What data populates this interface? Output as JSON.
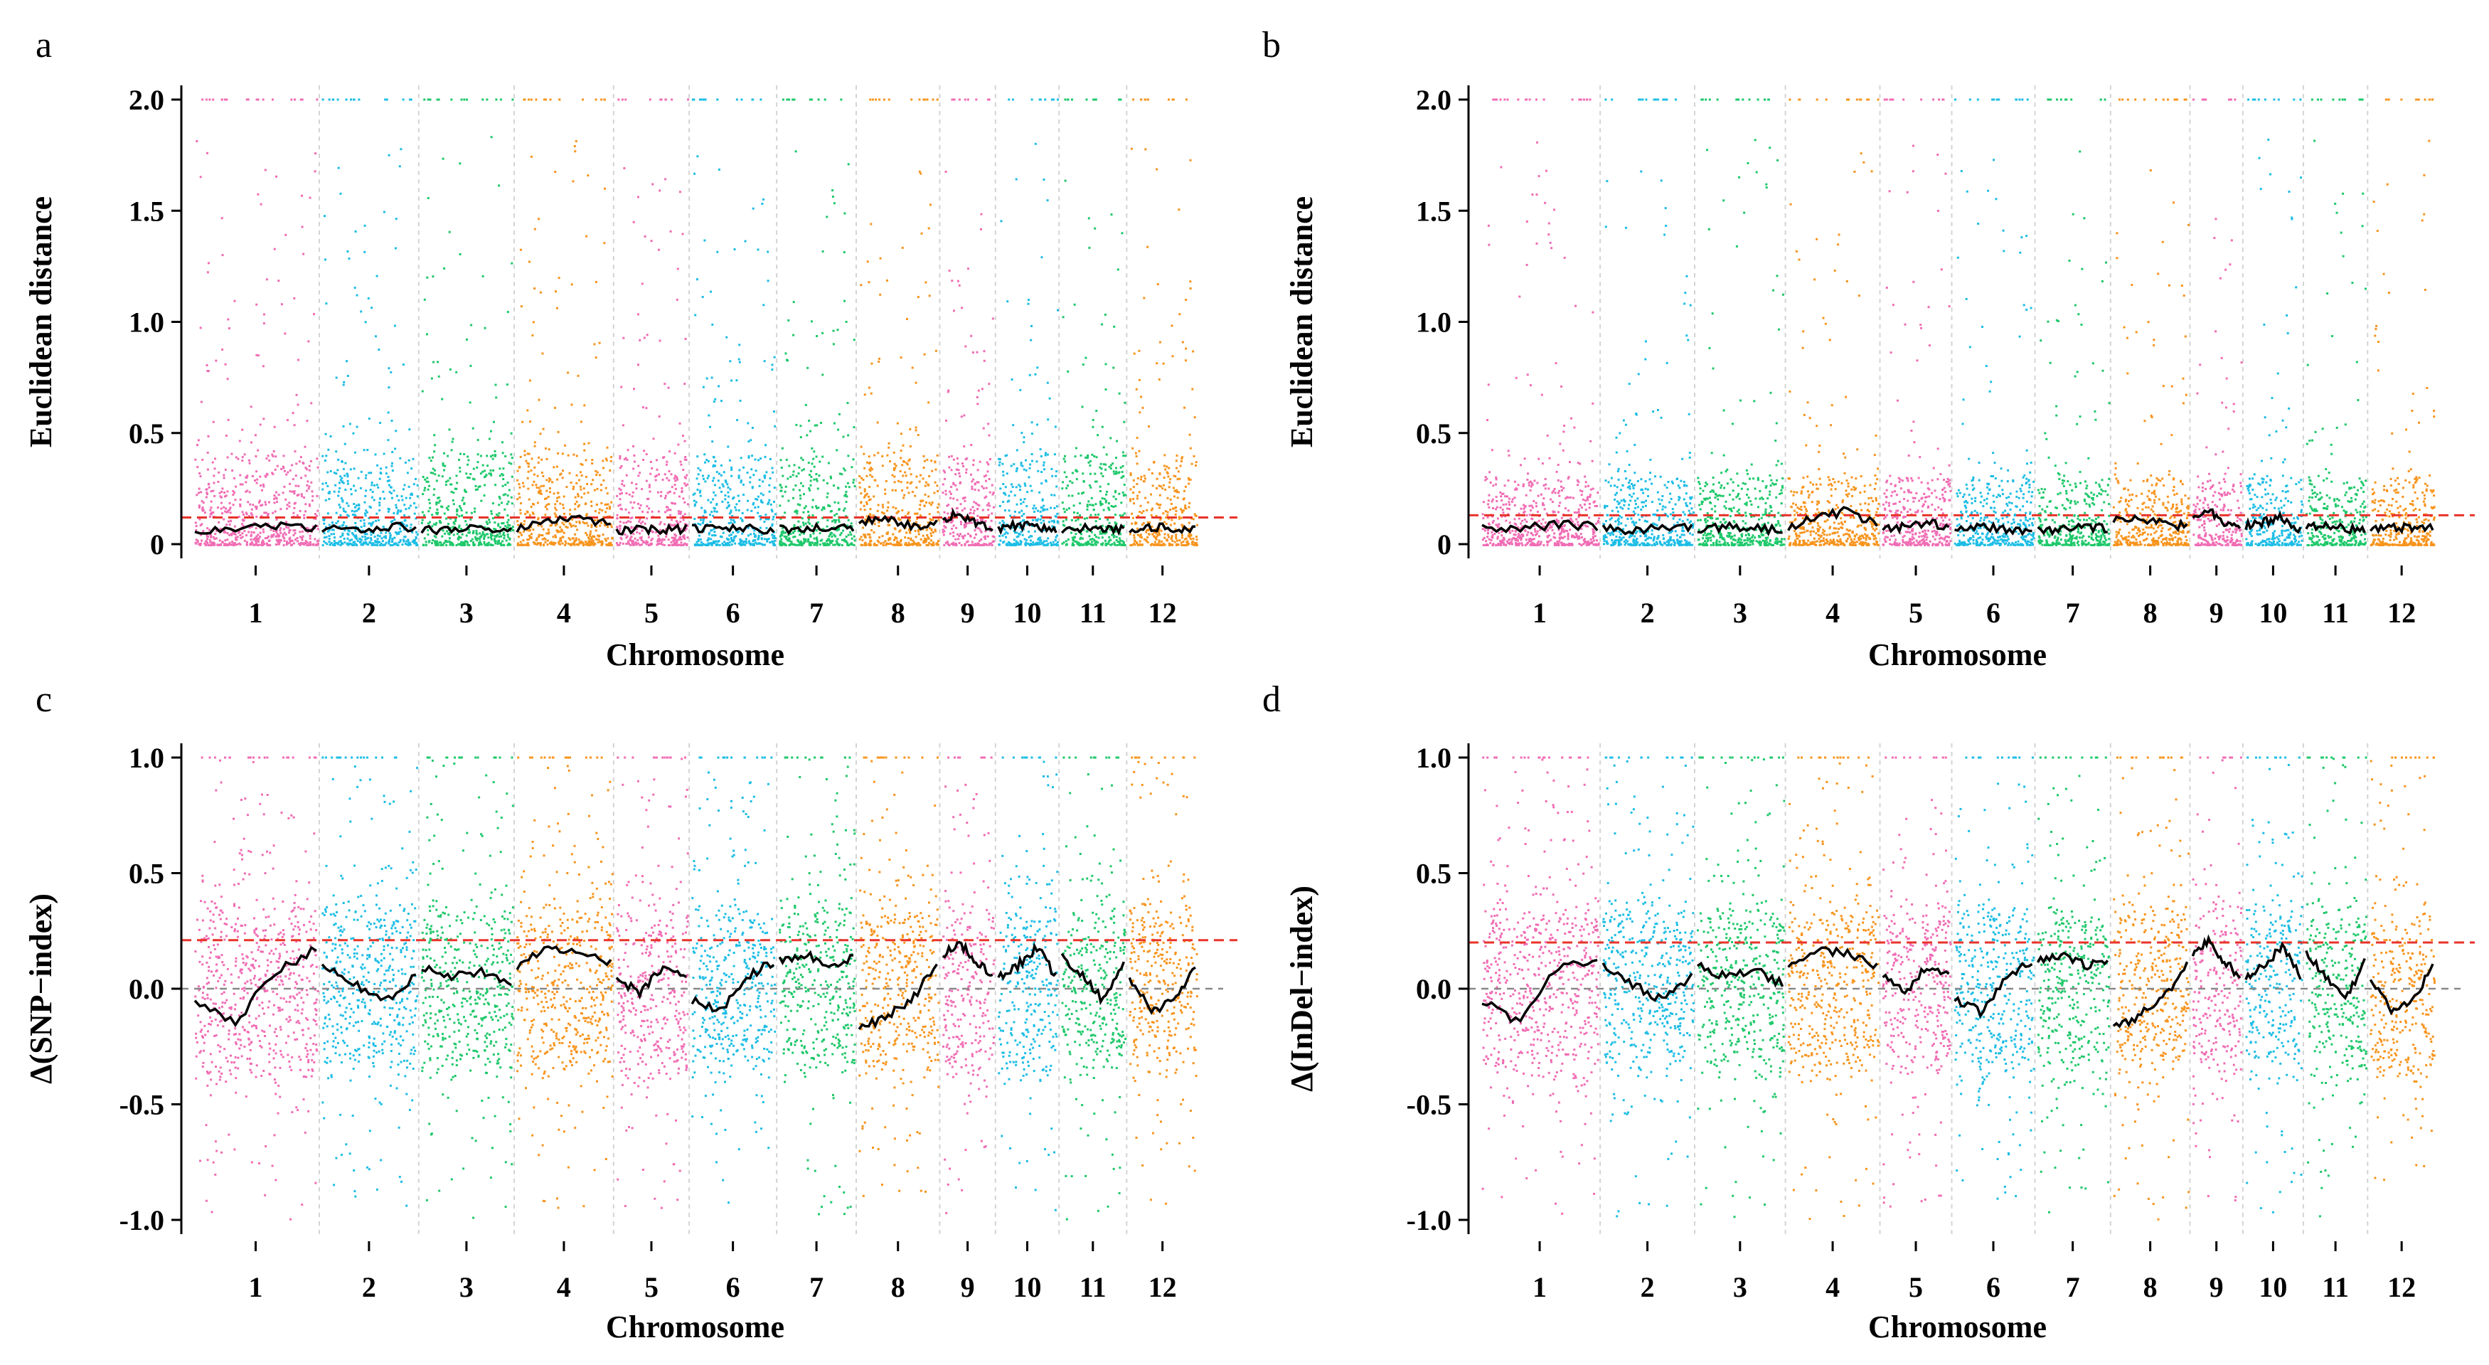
{
  "figure": {
    "type": "multi-panel-manhattan"
  },
  "palette": [
    "#f06cb4",
    "#1cbde5",
    "#1ec86a",
    "#f7941d"
  ],
  "chart_data": [
    {
      "panel": "a",
      "type": "scatter",
      "title": "",
      "xlabel": "Chromosome",
      "ylabel": "Euclidean distance",
      "ylim": [
        0,
        2.0
      ],
      "yticks": [
        "0",
        "0.5",
        "1.0",
        "1.5",
        "2.0"
      ],
      "yticks_values": [
        0,
        0.5,
        1.0,
        1.5,
        2.0
      ],
      "categories": [
        "1",
        "2",
        "3",
        "4",
        "5",
        "6",
        "7",
        "8",
        "9",
        "10",
        "11",
        "12"
      ],
      "threshold": 0.12,
      "threshold_color": "#e8332a",
      "zero_line": false,
      "baseline": 0.07,
      "dense_range": [
        0,
        0.4
      ],
      "spread": 1.0,
      "fit_trend": [
        [
          0.07,
          0.06,
          0.08,
          0.07
        ],
        [
          0.07,
          0.06,
          0.08,
          0.07
        ],
        [
          0.06,
          0.07,
          0.08,
          0.06
        ],
        [
          0.07,
          0.1,
          0.13,
          0.08
        ],
        [
          0.06,
          0.07,
          0.06,
          0.07
        ],
        [
          0.07,
          0.08,
          0.07,
          0.06
        ],
        [
          0.07,
          0.06,
          0.08,
          0.07
        ],
        [
          0.1,
          0.12,
          0.08,
          0.09
        ],
        [
          0.11,
          0.14,
          0.09,
          0.07
        ],
        [
          0.07,
          0.09,
          0.08,
          0.06
        ],
        [
          0.06,
          0.07,
          0.06,
          0.07
        ],
        [
          0.07,
          0.08,
          0.07,
          0.07
        ]
      ]
    },
    {
      "panel": "b",
      "type": "scatter",
      "title": "",
      "xlabel": "Chromosome",
      "ylabel": "Euclidean distance",
      "ylim": [
        0,
        2.0
      ],
      "yticks": [
        "0",
        "0.5",
        "1.0",
        "1.5",
        "2.0"
      ],
      "yticks_values": [
        0,
        0.5,
        1.0,
        1.5,
        2.0
      ],
      "categories": [
        "1",
        "2",
        "3",
        "4",
        "5",
        "6",
        "7",
        "8",
        "9",
        "10",
        "11",
        "12"
      ],
      "threshold": 0.13,
      "threshold_color": "#e8332a",
      "zero_line": false,
      "baseline": 0.07,
      "dense_range": [
        0,
        0.3
      ],
      "spread": 0.8,
      "fit_trend": [
        [
          0.08,
          0.07,
          0.09,
          0.08
        ],
        [
          0.07,
          0.06,
          0.08,
          0.07
        ],
        [
          0.07,
          0.08,
          0.07,
          0.06
        ],
        [
          0.08,
          0.12,
          0.15,
          0.09
        ],
        [
          0.07,
          0.08,
          0.1,
          0.07
        ],
        [
          0.07,
          0.08,
          0.07,
          0.06
        ],
        [
          0.07,
          0.06,
          0.08,
          0.07
        ],
        [
          0.11,
          0.12,
          0.09,
          0.08
        ],
        [
          0.12,
          0.15,
          0.1,
          0.07
        ],
        [
          0.08,
          0.1,
          0.12,
          0.06
        ],
        [
          0.07,
          0.08,
          0.07,
          0.07
        ],
        [
          0.07,
          0.08,
          0.07,
          0.07
        ]
      ]
    },
    {
      "panel": "c",
      "type": "scatter",
      "title": "",
      "xlabel": "Chromosome",
      "ylabel": "Δ(SNP−index)",
      "ylim": [
        -1.0,
        1.0
      ],
      "yticks": [
        "-1.0",
        "-0.5",
        "0.0",
        "0.5",
        "1.0"
      ],
      "yticks_values": [
        -1.0,
        -0.5,
        0,
        0.5,
        1.0
      ],
      "categories": [
        "1",
        "2",
        "3",
        "4",
        "5",
        "6",
        "7",
        "8",
        "9",
        "10",
        "11",
        "12"
      ],
      "threshold": 0.21,
      "threshold_color": "#e8332a",
      "zero_line": true,
      "baseline": 0.0,
      "dense_range": [
        -0.45,
        0.45
      ],
      "spread": 1.0,
      "fit_trend": [
        [
          -0.05,
          -0.15,
          0.08,
          0.17
        ],
        [
          0.1,
          0.02,
          -0.05,
          0.05
        ],
        [
          0.1,
          0.05,
          0.08,
          0.02
        ],
        [
          0.1,
          0.18,
          0.15,
          0.12
        ],
        [
          0.05,
          -0.02,
          0.1,
          0.05
        ],
        [
          -0.05,
          -0.1,
          0.05,
          0.12
        ],
        [
          0.12,
          0.15,
          0.1,
          0.13
        ],
        [
          -0.18,
          -0.12,
          -0.05,
          0.1
        ],
        [
          0.15,
          0.2,
          0.12,
          0.05
        ],
        [
          0.05,
          0.1,
          0.18,
          0.05
        ],
        [
          0.15,
          0.05,
          -0.05,
          0.1
        ],
        [
          0.05,
          -0.1,
          -0.05,
          0.1
        ]
      ]
    },
    {
      "panel": "d",
      "type": "scatter",
      "title": "",
      "xlabel": "Chromosome",
      "ylabel": "Δ(InDel−index)",
      "ylim": [
        -1.0,
        1.0
      ],
      "yticks": [
        "-1.0",
        "-0.5",
        "0.0",
        "0.5",
        "1.0"
      ],
      "yticks_values": [
        -1.0,
        -0.5,
        0,
        0.5,
        1.0
      ],
      "categories": [
        "1",
        "2",
        "3",
        "4",
        "5",
        "6",
        "7",
        "8",
        "9",
        "10",
        "11",
        "12"
      ],
      "threshold": 0.2,
      "threshold_color": "#e8332a",
      "zero_line": true,
      "baseline": 0.0,
      "dense_range": [
        -0.45,
        0.45
      ],
      "spread": 1.0,
      "fit_trend": [
        [
          -0.05,
          -0.15,
          0.1,
          0.13
        ],
        [
          0.1,
          0.02,
          -0.05,
          0.05
        ],
        [
          0.1,
          0.05,
          0.08,
          0.02
        ],
        [
          0.1,
          0.17,
          0.15,
          0.1
        ],
        [
          0.05,
          -0.02,
          0.1,
          0.05
        ],
        [
          -0.05,
          -0.1,
          0.05,
          0.12
        ],
        [
          0.12,
          0.15,
          0.1,
          0.12
        ],
        [
          -0.17,
          -0.12,
          -0.05,
          0.1
        ],
        [
          0.15,
          0.2,
          0.12,
          0.05
        ],
        [
          0.05,
          0.1,
          0.18,
          0.05
        ],
        [
          0.15,
          0.05,
          -0.05,
          0.12
        ],
        [
          0.05,
          -0.1,
          -0.05,
          0.1
        ]
      ]
    }
  ]
}
